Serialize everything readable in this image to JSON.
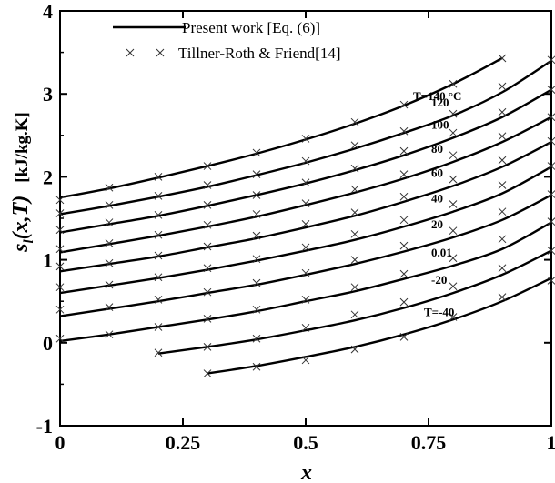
{
  "chart_data": {
    "type": "line",
    "xlabel": "x",
    "ylabel": "s_l(x,T)   [kJ/kg.K]",
    "xlim": [
      0,
      1
    ],
    "ylim": [
      -1,
      4
    ],
    "x_ticks": [
      "0",
      "0.25",
      "0.5",
      "0.75",
      "1"
    ],
    "y_ticks": [
      "-1",
      "0",
      "1",
      "2",
      "3",
      "4"
    ],
    "grid": false,
    "legend_position": "top-left",
    "legend": {
      "line_label": "Present work [Eq. (6)]",
      "marker_label": "Tillner-Roth & Friend[14]"
    },
    "series": [
      {
        "label": "T=140 °C",
        "line": {
          "x": [
            0,
            0.1,
            0.2,
            0.3,
            0.4,
            0.5,
            0.6,
            0.7,
            0.8,
            0.9
          ],
          "y": [
            1.75,
            1.86,
            1.99,
            2.13,
            2.28,
            2.45,
            2.64,
            2.86,
            3.12,
            3.43
          ]
        },
        "points": {
          "x": [
            0,
            0.1,
            0.2,
            0.3,
            0.4,
            0.5,
            0.6,
            0.7,
            0.8,
            0.9
          ],
          "y": [
            1.72,
            1.87,
            2.0,
            2.13,
            2.29,
            2.46,
            2.66,
            2.87,
            3.12,
            3.43
          ]
        }
      },
      {
        "label": "120",
        "line": {
          "x": [
            0,
            0.1,
            0.2,
            0.3,
            0.4,
            0.5,
            0.6,
            0.7,
            0.8,
            0.9,
            1.0
          ],
          "y": [
            1.55,
            1.65,
            1.76,
            1.88,
            2.02,
            2.17,
            2.34,
            2.53,
            2.74,
            3.02,
            3.4
          ]
        },
        "points": {
          "x": [
            0,
            0.1,
            0.2,
            0.3,
            0.4,
            0.5,
            0.6,
            0.7,
            0.8,
            0.9,
            1.0
          ],
          "y": [
            1.56,
            1.66,
            1.77,
            1.9,
            2.03,
            2.19,
            2.38,
            2.55,
            2.76,
            3.09,
            3.41
          ]
        }
      },
      {
        "label": "100",
        "line": {
          "x": [
            0,
            0.1,
            0.2,
            0.3,
            0.4,
            0.5,
            0.6,
            0.7,
            0.8,
            0.9,
            1.0
          ],
          "y": [
            1.33,
            1.43,
            1.53,
            1.65,
            1.78,
            1.92,
            2.08,
            2.26,
            2.47,
            2.72,
            3.05
          ]
        },
        "points": {
          "x": [
            0,
            0.1,
            0.2,
            0.3,
            0.4,
            0.5,
            0.6,
            0.7,
            0.8,
            0.9,
            1.0
          ],
          "y": [
            1.36,
            1.45,
            1.54,
            1.66,
            1.78,
            1.93,
            2.1,
            2.31,
            2.53,
            2.78,
            3.05
          ]
        }
      },
      {
        "label": "80",
        "line": {
          "x": [
            0,
            0.1,
            0.2,
            0.3,
            0.4,
            0.5,
            0.6,
            0.7,
            0.8,
            0.9,
            1.0
          ],
          "y": [
            1.09,
            1.19,
            1.29,
            1.4,
            1.52,
            1.66,
            1.81,
            1.98,
            2.18,
            2.42,
            2.72
          ]
        },
        "points": {
          "x": [
            0,
            0.1,
            0.2,
            0.3,
            0.4,
            0.5,
            0.6,
            0.7,
            0.8,
            0.9,
            1.0
          ],
          "y": [
            1.13,
            1.2,
            1.3,
            1.42,
            1.55,
            1.68,
            1.85,
            2.03,
            2.26,
            2.49,
            2.72
          ]
        }
      },
      {
        "label": "60",
        "line": {
          "x": [
            0,
            0.1,
            0.2,
            0.3,
            0.4,
            0.5,
            0.6,
            0.7,
            0.8,
            0.9,
            1.0
          ],
          "y": [
            0.86,
            0.95,
            1.04,
            1.15,
            1.26,
            1.39,
            1.53,
            1.7,
            1.89,
            2.12,
            2.42
          ]
        },
        "points": {
          "x": [
            0,
            0.1,
            0.2,
            0.3,
            0.4,
            0.5,
            0.6,
            0.7,
            0.8,
            0.9,
            1.0
          ],
          "y": [
            0.92,
            0.96,
            1.05,
            1.16,
            1.29,
            1.43,
            1.57,
            1.76,
            1.97,
            2.2,
            2.43
          ]
        }
      },
      {
        "label": "40",
        "line": {
          "x": [
            0,
            0.1,
            0.2,
            0.3,
            0.4,
            0.5,
            0.6,
            0.7,
            0.8,
            0.9,
            1.0
          ],
          "y": [
            0.6,
            0.69,
            0.78,
            0.88,
            0.99,
            1.11,
            1.24,
            1.4,
            1.58,
            1.8,
            2.12
          ]
        },
        "points": {
          "x": [
            0,
            0.1,
            0.2,
            0.3,
            0.4,
            0.5,
            0.6,
            0.7,
            0.8,
            0.9,
            1.0
          ],
          "y": [
            0.67,
            0.7,
            0.79,
            0.9,
            1.01,
            1.15,
            1.31,
            1.48,
            1.67,
            1.9,
            2.13
          ]
        }
      },
      {
        "label": "20",
        "line": {
          "x": [
            0,
            0.1,
            0.2,
            0.3,
            0.4,
            0.5,
            0.6,
            0.7,
            0.8,
            0.9,
            1.0
          ],
          "y": [
            0.32,
            0.41,
            0.5,
            0.6,
            0.7,
            0.82,
            0.95,
            1.1,
            1.27,
            1.48,
            1.78
          ]
        },
        "points": {
          "x": [
            0,
            0.1,
            0.2,
            0.3,
            0.4,
            0.5,
            0.6,
            0.7,
            0.8,
            0.9,
            1.0
          ],
          "y": [
            0.4,
            0.43,
            0.52,
            0.61,
            0.72,
            0.84,
            1.0,
            1.17,
            1.35,
            1.58,
            1.79
          ]
        }
      },
      {
        "label": "0.01",
        "line": {
          "x": [
            0,
            0.1,
            0.2,
            0.3,
            0.4,
            0.5,
            0.6,
            0.7,
            0.8,
            0.9,
            1.0
          ],
          "y": [
            0.02,
            0.1,
            0.19,
            0.28,
            0.38,
            0.5,
            0.62,
            0.77,
            0.93,
            1.13,
            1.45
          ]
        },
        "points": {
          "x": [
            0,
            0.1,
            0.2,
            0.3,
            0.4,
            0.5,
            0.6,
            0.7,
            0.8,
            0.9,
            1.0
          ],
          "y": [
            0.05,
            0.1,
            0.19,
            0.29,
            0.4,
            0.52,
            0.67,
            0.83,
            1.02,
            1.25,
            1.46
          ]
        }
      },
      {
        "label": "-20",
        "line": {
          "x": [
            0.2,
            0.3,
            0.4,
            0.5,
            0.6,
            0.7,
            0.8,
            0.9,
            1.0
          ],
          "y": [
            -0.13,
            -0.05,
            0.04,
            0.15,
            0.27,
            0.42,
            0.6,
            0.82,
            1.11
          ]
        },
        "points": {
          "x": [
            0.2,
            0.3,
            0.4,
            0.5,
            0.6,
            0.7,
            0.8,
            0.9,
            1.0
          ],
          "y": [
            -0.12,
            -0.05,
            0.05,
            0.18,
            0.34,
            0.49,
            0.68,
            0.9,
            1.11
          ]
        }
      },
      {
        "label": "T=-40",
        "line": {
          "x": [
            0.3,
            0.4,
            0.5,
            0.6,
            0.7,
            0.8,
            0.9,
            1.0
          ],
          "y": [
            -0.37,
            -0.28,
            -0.17,
            -0.05,
            0.1,
            0.28,
            0.5,
            0.78
          ]
        },
        "points": {
          "x": [
            0.3,
            0.4,
            0.5,
            0.6,
            0.7,
            0.8,
            0.9,
            1.0
          ],
          "y": [
            -0.37,
            -0.29,
            -0.21,
            -0.08,
            0.07,
            0.31,
            0.55,
            0.75
          ]
        }
      }
    ]
  }
}
